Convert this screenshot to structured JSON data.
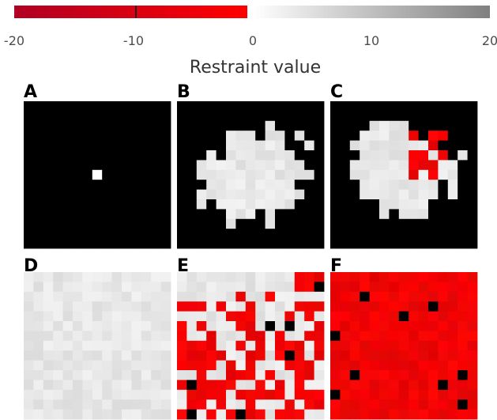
{
  "legend": {
    "title": "Restraint value",
    "ticks": [
      "-20",
      "-10",
      "0",
      "10",
      "20"
    ],
    "tick_values": [
      -20,
      -10,
      0,
      10,
      20
    ],
    "range": [
      -20,
      20
    ],
    "negative_colors": [
      "#b00024",
      "#ff0000"
    ],
    "positive_colors": [
      "#ffffff",
      "#808080"
    ]
  },
  "chart_data": {
    "type": "heatmap",
    "panel_labels": [
      "A",
      "B",
      "C",
      "D",
      "E",
      "F"
    ],
    "panels": [
      {
        "label": "A",
        "description": "single white cell at the center of a black grid"
      },
      {
        "label": "B",
        "description": "irregular grey-white blob on black background"
      },
      {
        "label": "C",
        "description": "white blob with a red region on black background"
      },
      {
        "label": "D",
        "description": "grid filled with light grey values"
      },
      {
        "label": "E",
        "description": "mixture of white and red regions with a few black cells"
      },
      {
        "label": "F",
        "description": "grid filled almost entirely with red, a few black cells"
      }
    ],
    "colorbar": {
      "label": "Restraint value",
      "range": [
        -20,
        20
      ]
    }
  }
}
